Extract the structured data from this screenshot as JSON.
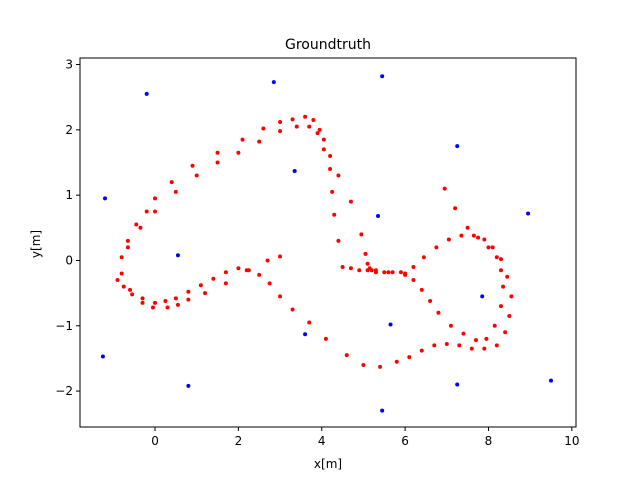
{
  "chart_data": {
    "type": "scatter",
    "title": "Groundtruth",
    "xlabel": "x[m]",
    "ylabel": "y[m]",
    "xlim": [
      -1.8,
      10.1
    ],
    "ylim": [
      -2.55,
      3.1
    ],
    "xticks": [
      0,
      2,
      4,
      6,
      8,
      10
    ],
    "yticks": [
      -2,
      -1,
      0,
      1,
      2,
      3
    ],
    "grid": false,
    "colors": {
      "landmarks": "#0000ff",
      "trajectory": "#ff0000"
    },
    "series": [
      {
        "kind": "landmarks",
        "x": [
          -1.2,
          -0.2,
          2.85,
          5.45,
          7.25,
          8.95,
          3.35,
          5.35,
          0.55,
          -1.25,
          0.8,
          3.6,
          5.65,
          7.85,
          7.25,
          9.5,
          5.45
        ],
        "y": [
          0.95,
          2.55,
          2.73,
          2.82,
          1.75,
          0.72,
          1.37,
          0.68,
          0.08,
          -1.47,
          -1.92,
          -1.13,
          -0.98,
          -0.55,
          -1.9,
          -1.84,
          -2.3
        ]
      },
      {
        "kind": "trajectory",
        "x": [
          3.0,
          2.7,
          2.2,
          1.7,
          1.2,
          0.8,
          0.55,
          0.3,
          -0.05,
          -0.3,
          -0.55,
          -0.75,
          -0.9,
          -0.8,
          -0.65,
          -0.45,
          -0.2,
          0.0,
          0.4,
          0.9,
          1.5,
          2.1,
          2.6,
          3.0,
          3.3,
          3.6,
          3.8,
          3.95,
          4.05,
          4.2,
          4.4,
          4.7,
          4.95,
          5.05,
          5.1,
          5.15,
          5.2,
          5.3,
          5.5,
          5.7,
          5.9,
          6.0,
          6.2,
          6.45,
          6.75,
          7.05,
          7.35,
          7.65,
          7.9,
          8.1,
          8.3,
          8.45,
          8.55,
          8.5,
          8.4,
          8.2,
          7.9,
          7.6,
          7.3,
          7.0,
          6.7,
          6.4,
          6.1,
          5.8,
          5.4,
          5.0,
          4.6,
          4.1,
          3.7,
          3.3,
          3.0,
          2.75,
          2.5,
          2.25,
          2.0,
          1.7,
          1.4,
          1.1,
          0.8,
          0.5,
          0.25,
          0.0,
          -0.3,
          -0.6,
          -0.8,
          -0.65,
          -0.35,
          0.0,
          0.5,
          1.0,
          1.5,
          2.0,
          2.5,
          3.0,
          3.4,
          3.7,
          3.9,
          4.05,
          4.2,
          4.25,
          4.3,
          4.4,
          4.5,
          4.7,
          4.9,
          5.1,
          5.3,
          5.6,
          6.0,
          6.2,
          6.4,
          6.6,
          6.8,
          7.1,
          7.4,
          7.7,
          7.95,
          8.15,
          8.3,
          8.35,
          8.3,
          8.2,
          8.0,
          7.75,
          7.5,
          7.2,
          6.95
        ],
        "y": [
          0.06,
          0.0,
          -0.15,
          -0.35,
          -0.5,
          -0.6,
          -0.68,
          -0.72,
          -0.72,
          -0.65,
          -0.52,
          -0.4,
          -0.3,
          0.05,
          0.3,
          0.55,
          0.75,
          0.95,
          1.2,
          1.45,
          1.65,
          1.85,
          2.02,
          2.12,
          2.16,
          2.2,
          2.15,
          2.0,
          1.85,
          1.6,
          1.3,
          0.9,
          0.4,
          0.1,
          -0.05,
          -0.12,
          -0.15,
          -0.18,
          -0.18,
          -0.18,
          -0.18,
          -0.2,
          -0.1,
          0.05,
          0.2,
          0.32,
          0.38,
          0.38,
          0.32,
          0.2,
          0.02,
          -0.25,
          -0.55,
          -0.85,
          -1.1,
          -1.3,
          -1.35,
          -1.35,
          -1.3,
          -1.28,
          -1.3,
          -1.38,
          -1.48,
          -1.55,
          -1.63,
          -1.6,
          -1.45,
          -1.2,
          -0.95,
          -0.75,
          -0.55,
          -0.35,
          -0.22,
          -0.15,
          -0.12,
          -0.18,
          -0.28,
          -0.38,
          -0.48,
          -0.58,
          -0.62,
          -0.65,
          -0.58,
          -0.45,
          -0.2,
          0.2,
          0.5,
          0.75,
          1.05,
          1.3,
          1.5,
          1.65,
          1.82,
          1.98,
          2.05,
          2.05,
          1.95,
          1.7,
          1.4,
          1.05,
          0.7,
          0.3,
          -0.1,
          -0.12,
          -0.15,
          -0.15,
          -0.15,
          -0.18,
          -0.22,
          -0.3,
          -0.45,
          -0.62,
          -0.8,
          -1.0,
          -1.12,
          -1.22,
          -1.2,
          -1.0,
          -0.7,
          -0.4,
          -0.15,
          0.05,
          0.2,
          0.35,
          0.5,
          0.8,
          1.1
        ]
      }
    ]
  }
}
